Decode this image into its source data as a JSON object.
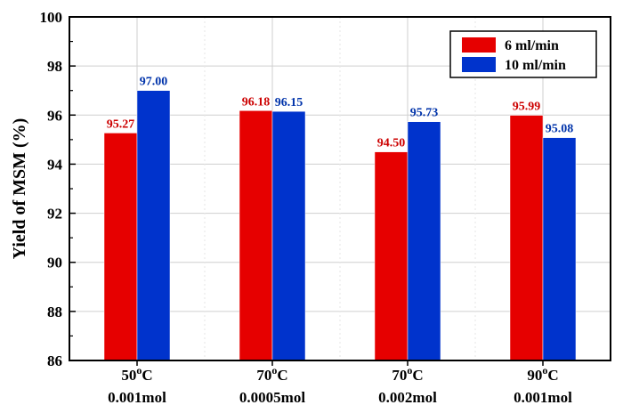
{
  "chart_data": {
    "type": "bar",
    "categories": [
      {
        "line1": "50",
        "sup": "o",
        "unit": "C",
        "line2": "0.001mol"
      },
      {
        "line1": "70",
        "sup": "o",
        "unit": "C",
        "line2": "0.0005mol"
      },
      {
        "line1": "70",
        "sup": "o",
        "unit": "C",
        "line2": "0.002mol"
      },
      {
        "line1": "90",
        "sup": "o",
        "unit": "C",
        "line2": "0.001mol"
      }
    ],
    "series": [
      {
        "name": "6 ml/min",
        "color": "#e60000",
        "label_color": "#cc0000",
        "values": [
          95.27,
          96.18,
          94.5,
          95.99
        ],
        "labels": [
          "95.27",
          "96.18",
          "94.50",
          "95.99"
        ]
      },
      {
        "name": "10 ml/min",
        "color": "#0033cc",
        "label_color": "#0033aa",
        "values": [
          97.0,
          96.15,
          95.73,
          95.08
        ],
        "labels": [
          "97.00",
          "96.15",
          "95.73",
          "95.08"
        ]
      }
    ],
    "xlabel": "",
    "ylabel": "Yield of MSM (%)",
    "ylim": [
      86,
      100
    ],
    "yticks": [
      86,
      88,
      90,
      92,
      94,
      96,
      98,
      100
    ],
    "grid": true,
    "legend_position": "top-right"
  }
}
